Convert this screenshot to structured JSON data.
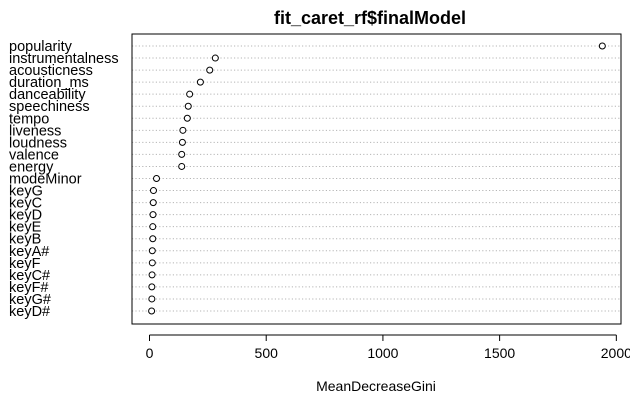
{
  "chart_data": {
    "type": "scatter",
    "subtype": "dotchart",
    "title": "fit_caret_rf$finalModel",
    "xlabel": "MeanDecreaseGini",
    "ylabel": "",
    "xlim": [
      -75,
      2020
    ],
    "xticks": [
      0,
      500,
      1000,
      1500,
      2000
    ],
    "grid": "dotted horizontal guides",
    "legend": "none",
    "categories": [
      "popularity",
      "instrumentalness",
      "acousticness",
      "duration_ms",
      "danceability",
      "speechiness",
      "tempo",
      "liveness",
      "loudness",
      "valence",
      "energy",
      "modeMinor",
      "keyG",
      "keyC",
      "keyD",
      "keyE",
      "keyB",
      "keyA#",
      "keyF",
      "keyC#",
      "keyF#",
      "keyG#",
      "keyD#"
    ],
    "values": [
      1940,
      282,
      258,
      218,
      172,
      166,
      162,
      143,
      141,
      138,
      138,
      30,
      17,
      16,
      15,
      14,
      14,
      12,
      12,
      11,
      10,
      10,
      9
    ]
  }
}
